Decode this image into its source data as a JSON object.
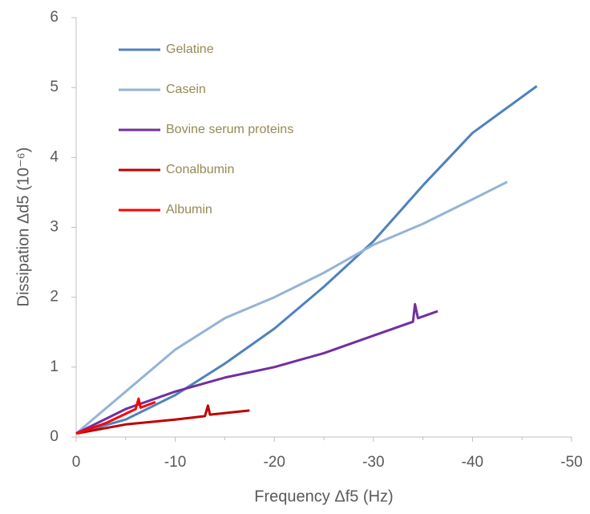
{
  "chart_data": {
    "type": "line",
    "xlabel": "Frequency Δf5 (Hz)",
    "ylabel": "Dissipation Δd5  (10⁻⁶)",
    "xlim": [
      0,
      -50
    ],
    "xticks": [
      0,
      -10,
      -20,
      -30,
      -40,
      -50
    ],
    "ylim": [
      0,
      6
    ],
    "yticks": [
      0,
      1,
      2,
      3,
      4,
      5,
      6
    ],
    "legend": "upper-left",
    "series": [
      {
        "name": "Gelatine",
        "color": "#4f81bd",
        "x": [
          0,
          -5,
          -10,
          -15,
          -20,
          -25,
          -30,
          -35,
          -40,
          -46.5
        ],
        "values": [
          0.05,
          0.25,
          0.6,
          1.05,
          1.55,
          2.15,
          2.8,
          3.6,
          4.35,
          5.02
        ]
      },
      {
        "name": "Casein",
        "color": "#95b3d7",
        "x": [
          0,
          -5,
          -10,
          -15,
          -20,
          -25,
          -30,
          -35,
          -40,
          -43.5
        ],
        "values": [
          0.05,
          0.65,
          1.25,
          1.7,
          2.0,
          2.35,
          2.75,
          3.05,
          3.4,
          3.65
        ]
      },
      {
        "name": "Bovine serum proteins",
        "color": "#7030a0",
        "x": [
          0,
          -5,
          -10,
          -15,
          -20,
          -25,
          -30,
          -34,
          -34.2,
          -34.5,
          -36.5
        ],
        "values": [
          0.05,
          0.4,
          0.65,
          0.85,
          1.0,
          1.2,
          1.45,
          1.65,
          1.9,
          1.7,
          1.8
        ]
      },
      {
        "name": "Conalbumin",
        "color": "#c00000",
        "x": [
          0,
          -5,
          -10,
          -13,
          -13.3,
          -13.5,
          -17.5
        ],
        "values": [
          0.05,
          0.18,
          0.25,
          0.3,
          0.45,
          0.32,
          0.38
        ]
      },
      {
        "name": "Albumin",
        "color": "#ff0000",
        "x": [
          0,
          -3,
          -6,
          -6.3,
          -6.5,
          -8
        ],
        "values": [
          0.05,
          0.2,
          0.4,
          0.55,
          0.42,
          0.5
        ]
      }
    ]
  }
}
